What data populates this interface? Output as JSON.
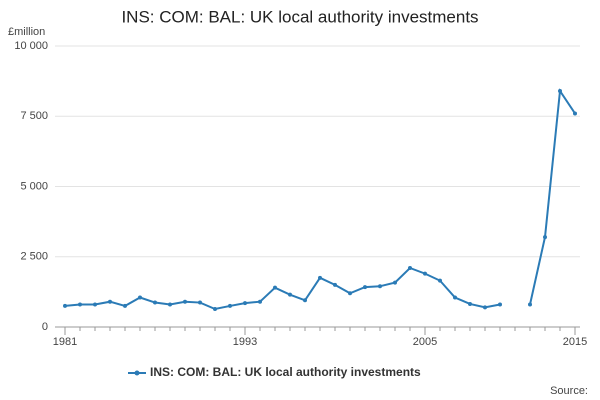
{
  "chart_data": {
    "type": "line",
    "title": "INS: COM: BAL: UK local authority investments",
    "y_label": "£million",
    "source": "Source:",
    "x": [
      1981,
      1982,
      1983,
      1984,
      1985,
      1986,
      1987,
      1988,
      1989,
      1990,
      1991,
      1992,
      1993,
      1994,
      1995,
      1996,
      1997,
      1998,
      1999,
      2000,
      2001,
      2002,
      2003,
      2004,
      2005,
      2006,
      2007,
      2008,
      2009,
      2010,
      2011,
      2012,
      2013,
      2014,
      2015
    ],
    "series": [
      {
        "name": "INS: COM: BAL: UK local authority investments",
        "color": "#2b7bb6",
        "values": [
          750,
          800,
          800,
          900,
          750,
          1050,
          870,
          800,
          900,
          870,
          640,
          750,
          850,
          900,
          1400,
          1150,
          950,
          1750,
          1500,
          1200,
          1420,
          1450,
          1580,
          2100,
          1900,
          1650,
          1050,
          820,
          700,
          800,
          null,
          800,
          3200,
          8400,
          7600
        ]
      }
    ],
    "xlim": [
      1981,
      2015
    ],
    "xticks": [
      1981,
      1993,
      2005,
      2015
    ],
    "ylim": [
      0,
      10000
    ],
    "yticks": [
      0,
      {
        "value": 2500,
        "label": "2 500"
      },
      {
        "value": 5000,
        "label": "5 000"
      },
      {
        "value": 7500,
        "label": "7 500"
      },
      {
        "value": 10000,
        "label": "10 000"
      }
    ],
    "grid": true
  }
}
